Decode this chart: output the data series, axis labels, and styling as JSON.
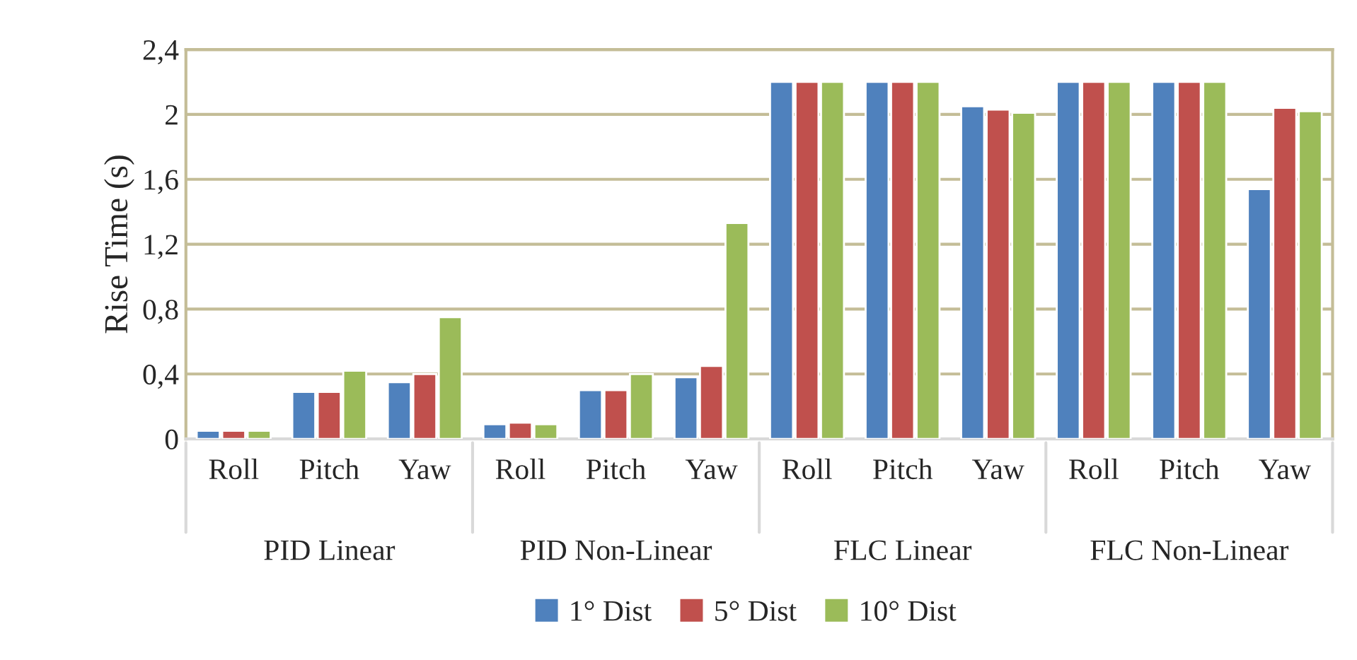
{
  "chart_data": {
    "type": "bar",
    "ylabel": "Rise Time (s)",
    "categories": [
      "Roll",
      "Pitch",
      "Yaw",
      "Roll",
      "Pitch",
      "Yaw",
      "Roll",
      "Pitch",
      "Yaw",
      "Roll",
      "Pitch",
      "Yaw"
    ],
    "annotations": [
      "PID Linear",
      "PID Non-Linear",
      "FLC Linear",
      "FLC Non-Linear"
    ],
    "series": [
      {
        "name": "1° Dist",
        "color": "#4f81bd",
        "values": [
          0.05,
          0.29,
          0.35,
          0.09,
          0.3,
          0.38,
          2.2,
          2.2,
          2.05,
          2.2,
          2.2,
          1.54
        ]
      },
      {
        "name": "5° Dist",
        "color": "#c0504d",
        "values": [
          0.05,
          0.29,
          0.4,
          0.1,
          0.3,
          0.45,
          2.2,
          2.2,
          2.03,
          2.2,
          2.2,
          2.04
        ]
      },
      {
        "name": "10° Dist",
        "color": "#9bbb59",
        "values": [
          0.05,
          0.42,
          0.75,
          0.09,
          0.4,
          1.33,
          2.2,
          2.2,
          2.01,
          2.2,
          2.2,
          2.02
        ]
      }
    ],
    "ylim": [
      0,
      2.4
    ],
    "yticks": [
      0,
      {
        "value": 0.4,
        "label": "0,4"
      },
      {
        "value": 0.8,
        "label": "0,8"
      },
      {
        "value": 1.2,
        "label": "1,2"
      },
      {
        "value": 1.6,
        "label": "1,6"
      },
      2,
      {
        "value": 2.4,
        "label": "2,4"
      }
    ],
    "grid": "y",
    "legend": "bottom"
  }
}
